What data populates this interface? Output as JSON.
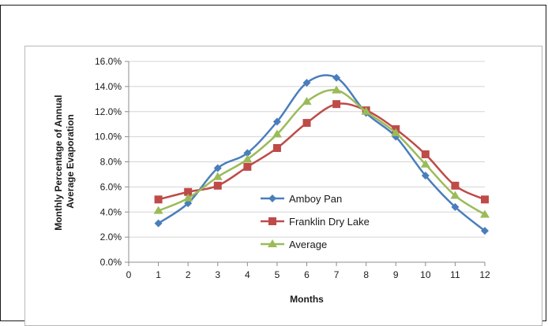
{
  "chart_data": {
    "type": "line",
    "xlabel": "Months",
    "ylabel": [
      "Monthly Percentage of Annual",
      "Average Evaporation"
    ],
    "xlim": [
      0,
      12
    ],
    "ylim": [
      0,
      16
    ],
    "x_ticks": [
      "0",
      "1",
      "2",
      "3",
      "4",
      "5",
      "6",
      "7",
      "8",
      "9",
      "10",
      "11",
      "12"
    ],
    "y_ticks": [
      "0.0%",
      "2.0%",
      "4.0%",
      "6.0%",
      "8.0%",
      "10.0%",
      "12.0%",
      "14.0%",
      "16.0%"
    ],
    "grid": "horizontal",
    "legend_position": "center",
    "x": [
      1,
      2,
      3,
      4,
      5,
      6,
      7,
      8,
      9,
      10,
      11,
      12
    ],
    "series": [
      {
        "name": "Amboy Pan",
        "color": "#4a7ebb",
        "marker": "diamond",
        "values": [
          3.1,
          4.7,
          7.5,
          8.7,
          11.2,
          14.3,
          14.7,
          11.9,
          10.0,
          6.9,
          4.4,
          2.5
        ]
      },
      {
        "name": "Franklin Dry Lake",
        "color": "#be4b48",
        "marker": "square",
        "values": [
          5.0,
          5.6,
          6.1,
          7.6,
          9.1,
          11.1,
          12.6,
          12.1,
          10.6,
          8.6,
          6.1,
          5.0
        ]
      },
      {
        "name": "Average",
        "color": "#9bbb59",
        "marker": "triangle",
        "values": [
          4.1,
          5.1,
          6.8,
          8.2,
          10.2,
          12.8,
          13.7,
          12.0,
          10.3,
          7.8,
          5.3,
          3.8
        ]
      }
    ]
  }
}
